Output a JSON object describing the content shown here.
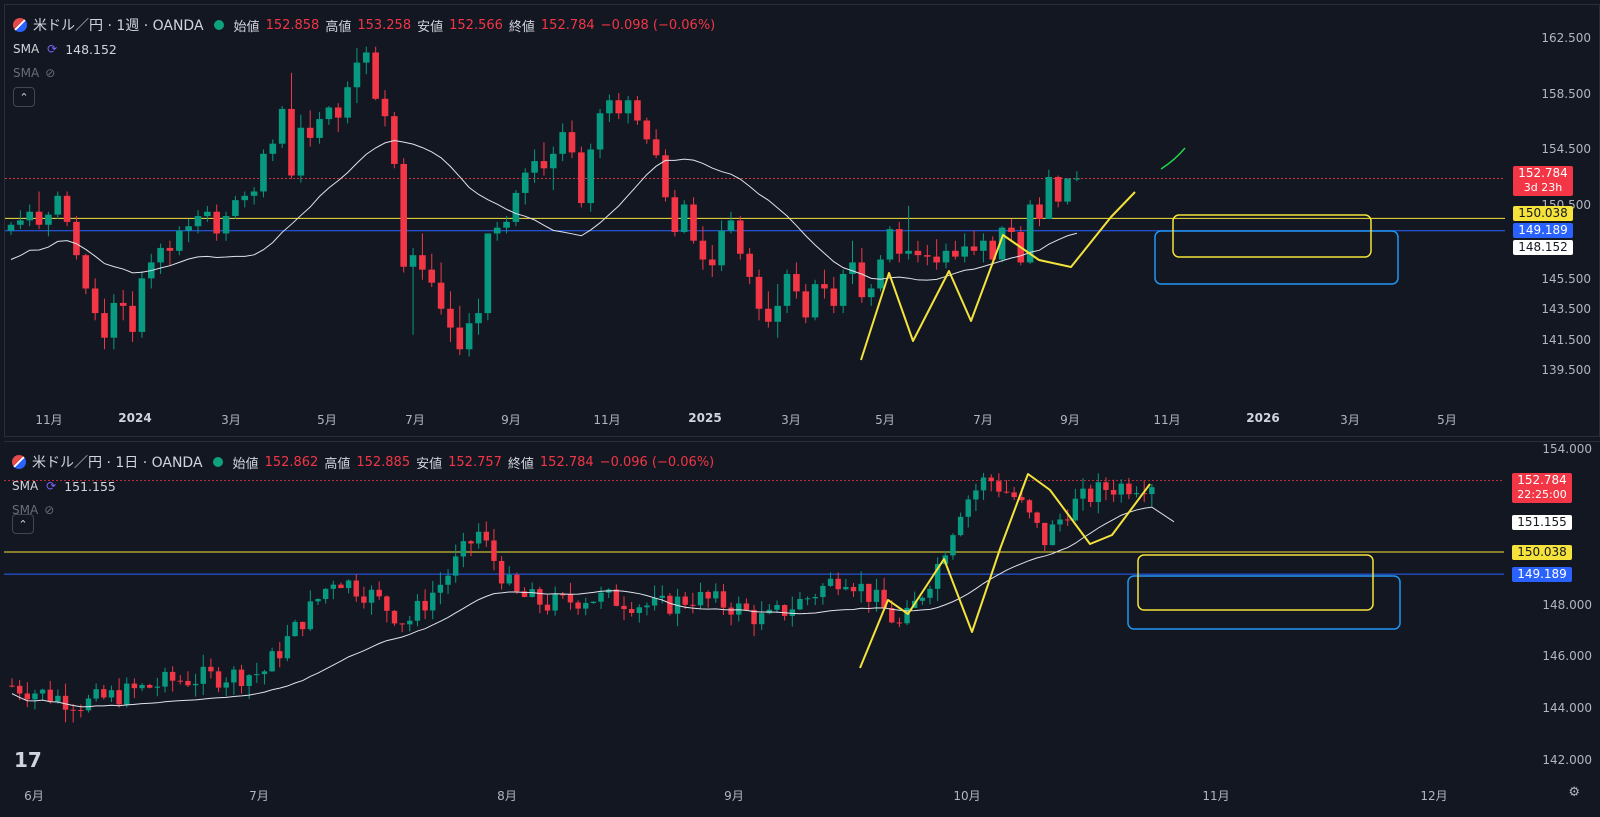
{
  "top": {
    "symbol_title": "米ドル／円 · 1週 · OANDA",
    "ohlc": {
      "open_label": "始値",
      "open": "152.858",
      "high_label": "高値",
      "high": "153.258",
      "low_label": "安値",
      "low": "152.566",
      "close_label": "終値",
      "close": "152.784",
      "change": "−0.098 (−0.06%)"
    },
    "sma1": {
      "label": "SMA",
      "value": "148.152"
    },
    "sma2": {
      "label": "SMA"
    },
    "collapse": "⌃",
    "y_ticks": [
      "162.500",
      "158.500",
      "154.500",
      "150.500",
      "145.500",
      "143.500",
      "141.500",
      "139.500"
    ],
    "x_ticks": [
      {
        "label": "11月",
        "bold": false
      },
      {
        "label": "2024",
        "bold": true
      },
      {
        "label": "3月",
        "bold": false
      },
      {
        "label": "5月",
        "bold": false
      },
      {
        "label": "7月",
        "bold": false
      },
      {
        "label": "9月",
        "bold": false
      },
      {
        "label": "11月",
        "bold": false
      },
      {
        "label": "2025",
        "bold": true
      },
      {
        "label": "3月",
        "bold": false
      },
      {
        "label": "5月",
        "bold": false
      },
      {
        "label": "7月",
        "bold": false
      },
      {
        "label": "9月",
        "bold": false
      },
      {
        "label": "11月",
        "bold": false
      },
      {
        "label": "2026",
        "bold": true
      },
      {
        "label": "3月",
        "bold": false
      },
      {
        "label": "5月",
        "bold": false
      }
    ],
    "price_tag": {
      "value": "152.784",
      "countdown": "3d 23h"
    },
    "yellow_tag": "150.038",
    "blue_tag": "149.189",
    "sma_tag": "148.152"
  },
  "bottom": {
    "symbol_title": "米ドル／円 · 1日 · OANDA",
    "ohlc": {
      "open_label": "始値",
      "open": "152.862",
      "high_label": "高値",
      "high": "152.885",
      "low_label": "安値",
      "low": "152.757",
      "close_label": "終値",
      "close": "152.784",
      "change": "−0.096 (−0.06%)"
    },
    "sma1": {
      "label": "SMA",
      "value": "151.155"
    },
    "sma2": {
      "label": "SMA"
    },
    "collapse": "⌃",
    "y_ticks": [
      "154.000",
      "148.000",
      "146.000",
      "144.000",
      "142.000"
    ],
    "x_ticks": [
      {
        "label": "6月",
        "bold": false
      },
      {
        "label": "7月",
        "bold": false
      },
      {
        "label": "8月",
        "bold": false
      },
      {
        "label": "9月",
        "bold": false
      },
      {
        "label": "10月",
        "bold": false
      },
      {
        "label": "11月",
        "bold": false
      },
      {
        "label": "12月",
        "bold": false
      }
    ],
    "price_tag": {
      "value": "152.784",
      "countdown": "22:25:00"
    },
    "sma_tag": "151.155",
    "yellow_tag": "150.038",
    "blue_tag": "149.189"
  },
  "logo": "17",
  "settings_icon": "gear-icon",
  "colors": {
    "up": "#089981",
    "down": "#f23645",
    "sma": "#e0e3eb",
    "yellow": "#f5e33b",
    "blue": "#2962ff",
    "bg": "#131722"
  },
  "chart_data": [
    {
      "type": "candlestick",
      "interval": "1W",
      "y_range": [
        139.5,
        162.5
      ],
      "horizontal_lines": [
        150.038,
        149.189
      ],
      "series": [
        {
          "name": "SMA",
          "values": [
            148.152
          ]
        }
      ],
      "candles": [
        [
          149.2,
          149.8,
          148.9,
          149.6
        ],
        [
          149.6,
          150.6,
          149.3,
          149.9
        ],
        [
          149.9,
          151.0,
          149.5,
          150.5
        ],
        [
          150.5,
          151.9,
          149.3,
          149.6
        ],
        [
          149.6,
          150.5,
          148.8,
          150.3
        ],
        [
          150.3,
          151.9,
          150.0,
          151.6
        ],
        [
          151.6,
          151.9,
          149.5,
          149.8
        ],
        [
          149.8,
          150.2,
          147.2,
          147.5
        ],
        [
          147.5,
          147.6,
          144.8,
          145.2
        ],
        [
          145.2,
          145.9,
          143.0,
          143.5
        ],
        [
          143.5,
          144.5,
          141.0,
          141.8
        ],
        [
          141.8,
          144.8,
          141.0,
          144.2
        ],
        [
          144.2,
          145.1,
          143.0,
          144.0
        ],
        [
          144.0,
          145.0,
          141.5,
          142.2
        ],
        [
          142.2,
          146.4,
          141.8,
          145.9
        ],
        [
          145.9,
          147.6,
          145.2,
          147.0
        ],
        [
          147.0,
          148.3,
          146.2,
          148.0
        ],
        [
          148.0,
          148.5,
          146.8,
          147.8
        ],
        [
          147.8,
          149.5,
          147.5,
          149.2
        ],
        [
          149.2,
          150.0,
          148.4,
          149.5
        ],
        [
          149.5,
          150.6,
          149.0,
          150.2
        ],
        [
          150.2,
          150.9,
          149.8,
          150.5
        ],
        [
          150.5,
          151.0,
          148.5,
          149.0
        ],
        [
          149.0,
          150.5,
          148.5,
          150.2
        ],
        [
          150.2,
          151.6,
          150.0,
          151.3
        ],
        [
          151.3,
          151.9,
          150.8,
          151.6
        ],
        [
          151.6,
          152.2,
          151.0,
          151.9
        ],
        [
          151.9,
          154.8,
          151.5,
          154.5
        ],
        [
          154.5,
          155.5,
          154.0,
          155.2
        ],
        [
          155.2,
          157.8,
          154.9,
          157.6
        ],
        [
          157.6,
          160.1,
          152.8,
          153.0
        ],
        [
          153.0,
          157.2,
          152.5,
          156.3
        ],
        [
          156.3,
          157.5,
          155.0,
          155.6
        ],
        [
          155.6,
          157.4,
          155.2,
          156.9
        ],
        [
          156.9,
          157.8,
          156.5,
          157.7
        ],
        [
          157.7,
          158.0,
          156.0,
          157.0
        ],
        [
          157.0,
          159.5,
          156.6,
          159.1
        ],
        [
          159.1,
          161.8,
          158.0,
          160.8
        ],
        [
          160.8,
          161.9,
          160.0,
          161.5
        ],
        [
          161.5,
          161.9,
          158.2,
          158.3
        ],
        [
          158.3,
          158.9,
          156.4,
          157.1
        ],
        [
          157.1,
          157.4,
          153.5,
          153.8
        ],
        [
          153.8,
          154.2,
          146.3,
          146.7
        ],
        [
          146.7,
          148.0,
          142.0,
          147.5
        ],
        [
          147.5,
          149.0,
          145.8,
          146.5
        ],
        [
          146.5,
          147.6,
          145.3,
          145.6
        ],
        [
          145.6,
          147.0,
          143.4,
          143.8
        ],
        [
          143.8,
          145.0,
          141.5,
          142.5
        ],
        [
          142.5,
          144.0,
          140.6,
          141.0
        ],
        [
          141.0,
          143.5,
          140.5,
          142.8
        ],
        [
          142.8,
          144.5,
          142.0,
          143.5
        ],
        [
          143.5,
          149.0,
          143.0,
          149.0
        ],
        [
          149.0,
          149.8,
          148.5,
          149.4
        ],
        [
          149.4,
          150.2,
          149.0,
          149.8
        ],
        [
          149.8,
          152.0,
          149.5,
          151.8
        ],
        [
          151.8,
          153.5,
          151.0,
          153.2
        ],
        [
          153.2,
          154.8,
          152.5,
          154.0
        ],
        [
          154.0,
          155.3,
          153.0,
          153.5
        ],
        [
          153.5,
          155.0,
          152.0,
          154.5
        ],
        [
          154.5,
          156.6,
          154.0,
          156.0
        ],
        [
          156.0,
          156.8,
          154.2,
          154.6
        ],
        [
          154.6,
          155.0,
          150.8,
          151.1
        ],
        [
          151.1,
          155.2,
          150.5,
          154.8
        ],
        [
          154.8,
          157.6,
          154.2,
          157.3
        ],
        [
          157.3,
          158.6,
          156.7,
          158.2
        ],
        [
          158.2,
          158.7,
          156.9,
          157.3
        ],
        [
          157.3,
          158.5,
          156.6,
          158.2
        ],
        [
          158.2,
          158.5,
          156.5,
          156.8
        ],
        [
          156.8,
          157.0,
          155.2,
          155.5
        ],
        [
          155.5,
          156.2,
          154.2,
          154.4
        ],
        [
          154.4,
          154.8,
          151.2,
          151.5
        ],
        [
          151.5,
          152.0,
          148.8,
          149.1
        ],
        [
          149.1,
          151.3,
          149.0,
          151.0
        ],
        [
          151.0,
          151.5,
          148.3,
          148.5
        ],
        [
          148.5,
          149.5,
          146.5,
          147.2
        ],
        [
          147.2,
          148.2,
          146.0,
          146.8
        ],
        [
          146.8,
          149.9,
          146.4,
          149.2
        ],
        [
          149.2,
          150.5,
          149.0,
          149.9
        ],
        [
          149.9,
          150.2,
          147.2,
          147.6
        ],
        [
          147.6,
          148.0,
          145.5,
          146.0
        ],
        [
          146.0,
          146.5,
          143.0,
          143.8
        ],
        [
          143.8,
          145.0,
          142.5,
          142.9
        ],
        [
          142.9,
          145.5,
          141.8,
          144.0
        ],
        [
          144.0,
          146.5,
          143.5,
          146.2
        ],
        [
          146.2,
          147.0,
          144.5,
          145.0
        ],
        [
          145.0,
          145.5,
          142.8,
          143.2
        ],
        [
          143.2,
          145.8,
          143.0,
          145.5
        ],
        [
          145.5,
          146.5,
          144.5,
          145.2
        ],
        [
          145.2,
          146.0,
          143.5,
          144.0
        ],
        [
          144.0,
          146.5,
          143.5,
          146.2
        ],
        [
          146.2,
          148.5,
          145.5,
          147.0
        ],
        [
          147.0,
          148.0,
          144.2,
          144.6
        ],
        [
          144.6,
          145.5,
          144.0,
          145.2
        ],
        [
          145.2,
          147.5,
          145.0,
          147.2
        ],
        [
          147.2,
          149.5,
          147.0,
          149.3
        ],
        [
          149.3,
          149.8,
          147.0,
          147.6
        ],
        [
          147.6,
          150.9,
          147.2,
          147.8
        ],
        [
          147.8,
          148.5,
          147.0,
          147.5
        ],
        [
          147.5,
          148.2,
          146.8,
          147.4
        ],
        [
          147.4,
          148.6,
          146.5,
          147.0
        ],
        [
          147.0,
          148.3,
          146.6,
          147.8
        ],
        [
          147.8,
          148.5,
          147.2,
          147.4
        ],
        [
          147.4,
          149.0,
          147.0,
          148.1
        ],
        [
          148.1,
          149.2,
          147.5,
          147.8
        ],
        [
          147.8,
          149.0,
          147.0,
          148.5
        ],
        [
          148.5,
          148.8,
          146.8,
          147.2
        ],
        [
          147.2,
          149.5,
          147.0,
          149.4
        ],
        [
          149.4,
          150.0,
          148.5,
          149.1
        ],
        [
          149.1,
          149.5,
          146.8,
          147.0
        ],
        [
          147.0,
          151.3,
          146.9,
          151.0
        ],
        [
          151.0,
          151.5,
          149.5,
          150.0
        ],
        [
          150.0,
          153.4,
          150.0,
          152.9
        ],
        [
          152.9,
          153.0,
          150.8,
          151.2
        ],
        [
          151.2,
          152.7,
          151.0,
          152.8
        ],
        [
          152.8,
          153.3,
          152.6,
          152.8
        ]
      ]
    },
    {
      "type": "candlestick",
      "interval": "1D",
      "y_range": [
        142.0,
        154.0
      ],
      "horizontal_lines": [
        150.038,
        149.189
      ],
      "series": [
        {
          "name": "SMA",
          "values": [
            151.155
          ]
        }
      ]
    }
  ]
}
